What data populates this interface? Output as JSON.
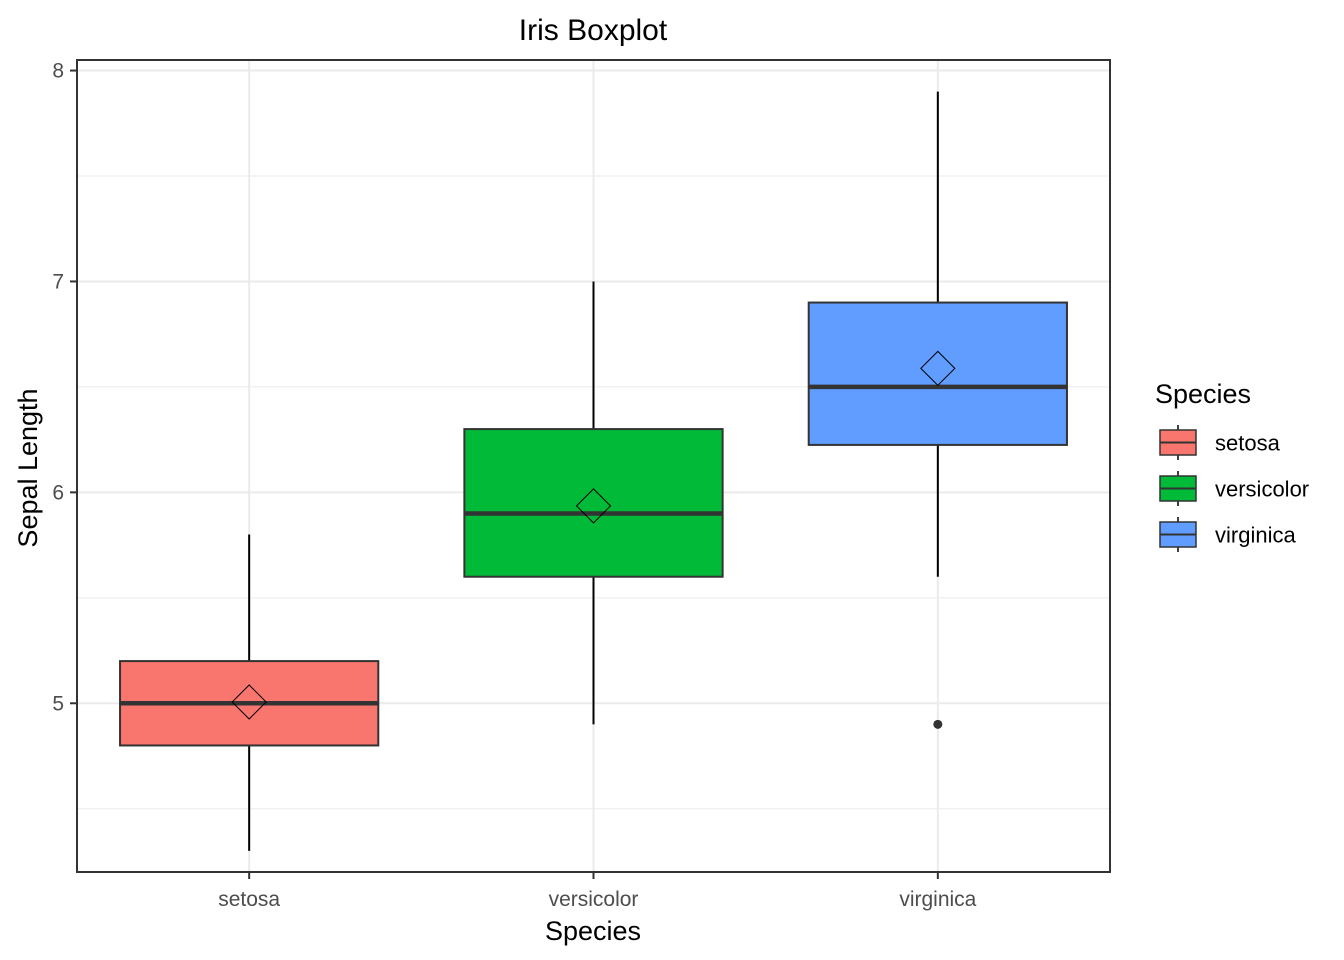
{
  "chart_data": {
    "type": "boxplot",
    "title": "Iris Boxplot",
    "xlabel": "Species",
    "ylabel": "Sepal Length",
    "categories": [
      "setosa",
      "versicolor",
      "virginica"
    ],
    "ylim": [
      4.2,
      8.05
    ],
    "yticks": [
      5,
      6,
      7,
      8
    ],
    "yticks_labels": [
      "5",
      "6",
      "7",
      "8"
    ],
    "grid": true,
    "legend": {
      "title": "Species",
      "position": "right",
      "entries": [
        "setosa",
        "versicolor",
        "virginica"
      ]
    },
    "colors": [
      "#F8766D",
      "#00BA38",
      "#619CFF"
    ],
    "boxes": [
      {
        "category": "setosa",
        "min": 4.3,
        "q1": 4.8,
        "median": 5.0,
        "q3": 5.2,
        "max": 5.8,
        "mean": 5.006,
        "outliers": []
      },
      {
        "category": "versicolor",
        "min": 4.9,
        "q1": 5.6,
        "median": 5.9,
        "q3": 6.3,
        "max": 7.0,
        "mean": 5.936,
        "outliers": []
      },
      {
        "category": "virginica",
        "min": 5.6,
        "q1": 6.225,
        "median": 6.5,
        "q3": 6.9,
        "max": 7.9,
        "mean": 6.588,
        "outliers": [
          4.9
        ]
      }
    ]
  }
}
